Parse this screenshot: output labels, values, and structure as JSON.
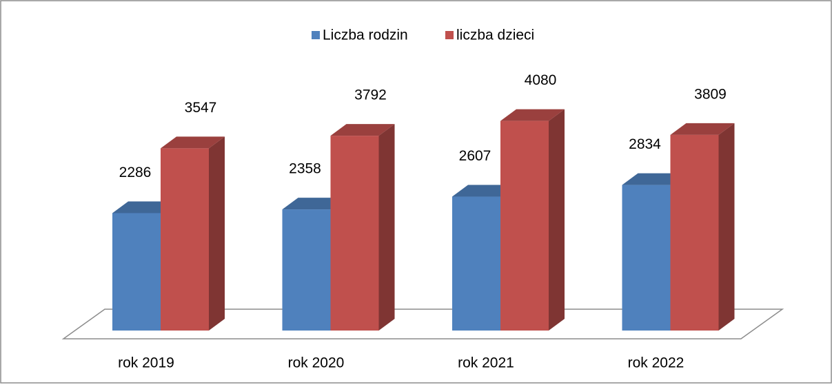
{
  "chart_data": {
    "type": "bar3d",
    "categories": [
      "rok 2019",
      "rok 2020",
      "rok 2021",
      "rok 2022"
    ],
    "series": [
      {
        "name": "Liczba rodzin",
        "color": "#4f81bd",
        "values": [
          2286,
          2358,
          2607,
          2834
        ]
      },
      {
        "name": "liczba dzieci",
        "color": "#c0504d",
        "values": [
          3547,
          3792,
          4080,
          3809
        ]
      }
    ],
    "legend": "top"
  }
}
